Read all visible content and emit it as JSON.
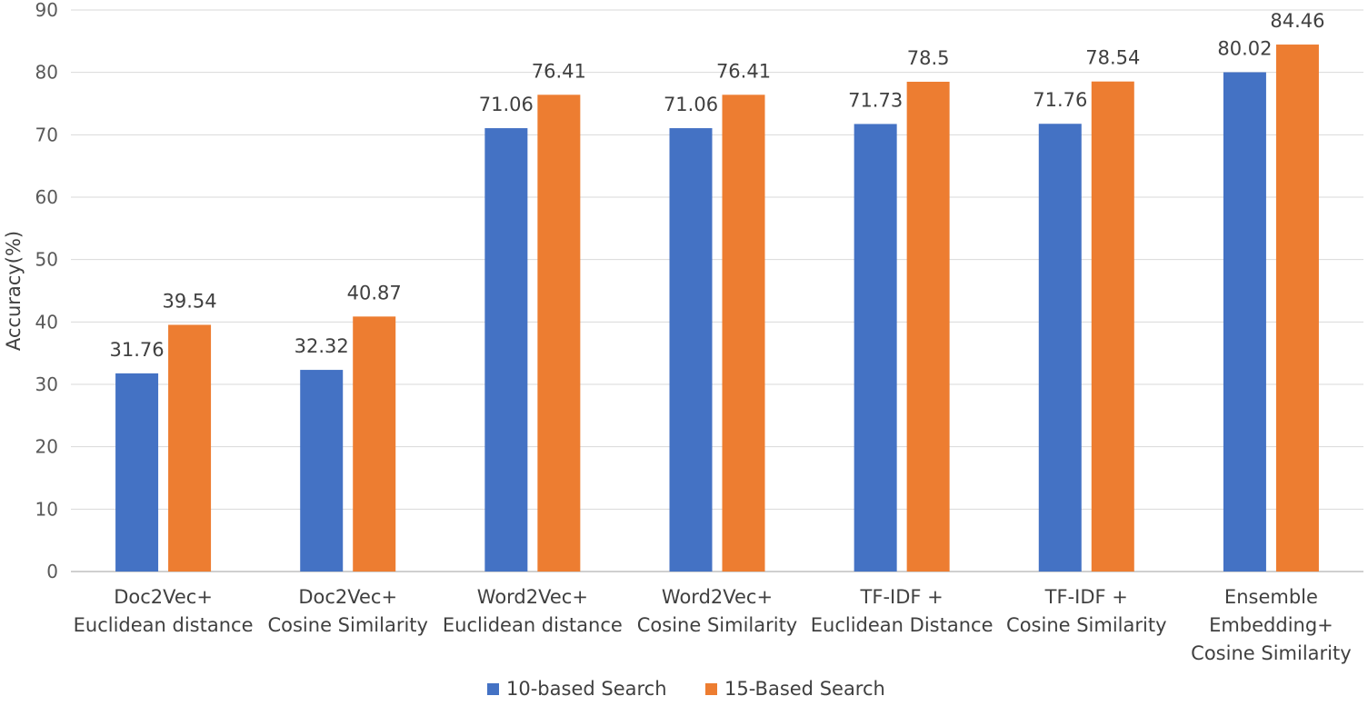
{
  "chart_data": {
    "type": "bar",
    "title": "",
    "xlabel": "",
    "ylabel": "Accuracy(%)",
    "ylim": [
      0,
      90
    ],
    "yticks": [
      0,
      10,
      20,
      30,
      40,
      50,
      60,
      70,
      80,
      90
    ],
    "grid": true,
    "legend_position": "bottom",
    "categories": [
      [
        "Doc2Vec+",
        "Euclidean distance"
      ],
      [
        "Doc2Vec+",
        "Cosine Similarity"
      ],
      [
        "Word2Vec+",
        "Euclidean distance"
      ],
      [
        "Word2Vec+",
        "Cosine Similarity"
      ],
      [
        "TF-IDF +",
        "Euclidean Distance"
      ],
      [
        "TF-IDF +",
        "Cosine Similarity"
      ],
      [
        "Ensemble",
        "Embedding+",
        "Cosine Similarity"
      ]
    ],
    "series": [
      {
        "name": "10-based Search",
        "color": "#4472c4",
        "values": [
          31.76,
          32.32,
          71.06,
          71.06,
          71.73,
          71.76,
          80.02
        ],
        "labels": [
          "31.76",
          "32.32",
          "71.06",
          "71.06",
          "71.73",
          "71.76",
          "80.02"
        ]
      },
      {
        "name": "15-Based Search",
        "color": "#ed7d31",
        "values": [
          39.54,
          40.87,
          76.41,
          76.41,
          78.5,
          78.54,
          84.46
        ],
        "labels": [
          "39.54",
          "40.87",
          "76.41",
          "76.41",
          "78.5",
          "78.54",
          "84.46"
        ]
      }
    ]
  }
}
